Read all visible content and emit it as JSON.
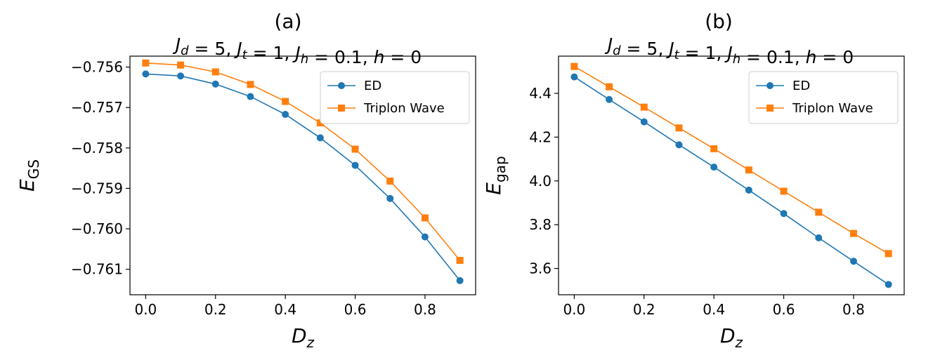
{
  "chart_data": [
    {
      "type": "line",
      "panel_label": "(a)",
      "title": {
        "parts": [
          {
            "text": "J",
            "italic": true
          },
          {
            "text": "d",
            "italic": true,
            "sub": true
          },
          {
            "text": " = 5, ",
            "italic": false
          },
          {
            "text": "J",
            "italic": true
          },
          {
            "text": "t",
            "italic": true,
            "sub": true
          },
          {
            "text": " = 1, ",
            "italic": false
          },
          {
            "text": "J",
            "italic": true
          },
          {
            "text": "h",
            "italic": true,
            "sub": true
          },
          {
            "text": " = 0.1, ",
            "italic": false
          },
          {
            "text": "h",
            "italic": true
          },
          {
            "text": " = 0",
            "italic": false
          }
        ]
      },
      "xlabel": {
        "main": "D",
        "sub": "z",
        "italic": true,
        "sub_italic": true
      },
      "ylabel": {
        "main": "E",
        "sub": "GS",
        "italic": true,
        "sub_italic": false
      },
      "xlim": [
        -0.045,
        0.945
      ],
      "ylim": [
        -0.76163,
        -0.75573
      ],
      "xticks": [
        0.0,
        0.2,
        0.4,
        0.6,
        0.8
      ],
      "xtick_labels": [
        "0.0",
        "0.2",
        "0.4",
        "0.6",
        "0.8"
      ],
      "yticks": [
        -0.756,
        -0.757,
        -0.758,
        -0.759,
        -0.76,
        -0.761
      ],
      "ytick_labels": [
        "−0.756",
        "−0.757",
        "−0.758",
        "−0.759",
        "−0.760",
        "−0.761"
      ],
      "grid": false,
      "legend_position": "top-right",
      "x": [
        0.0,
        0.1,
        0.2,
        0.3,
        0.4,
        0.5,
        0.6,
        0.7,
        0.8,
        0.9
      ],
      "series": [
        {
          "name": "ED",
          "color": "#1f77b4",
          "marker": "circle",
          "values": [
            -0.75617,
            -0.75622,
            -0.75642,
            -0.75673,
            -0.75717,
            -0.75775,
            -0.75843,
            -0.75925,
            -0.7602,
            -0.76128
          ]
        },
        {
          "name": "Triplon Wave",
          "color": "#ff7f0e",
          "marker": "square",
          "values": [
            -0.7559,
            -0.75595,
            -0.75612,
            -0.75643,
            -0.75685,
            -0.75738,
            -0.75803,
            -0.75882,
            -0.75973,
            -0.76078
          ]
        }
      ]
    },
    {
      "type": "line",
      "panel_label": "(b)",
      "title": {
        "parts": [
          {
            "text": "J",
            "italic": true
          },
          {
            "text": "d",
            "italic": true,
            "sub": true
          },
          {
            "text": " = 5, ",
            "italic": false
          },
          {
            "text": "J",
            "italic": true
          },
          {
            "text": "t",
            "italic": true,
            "sub": true
          },
          {
            "text": " = 1, ",
            "italic": false
          },
          {
            "text": "J",
            "italic": true
          },
          {
            "text": "h",
            "italic": true,
            "sub": true
          },
          {
            "text": " = 0.1, ",
            "italic": false
          },
          {
            "text": "h",
            "italic": true
          },
          {
            "text": " = 0",
            "italic": false
          }
        ]
      },
      "xlabel": {
        "main": "D",
        "sub": "z",
        "italic": true,
        "sub_italic": true
      },
      "ylabel": {
        "main": "E",
        "sub": "gap",
        "italic": true,
        "sub_italic": false
      },
      "xlim": [
        -0.045,
        0.945
      ],
      "ylim": [
        3.48,
        4.57
      ],
      "xticks": [
        0.0,
        0.2,
        0.4,
        0.6,
        0.8
      ],
      "xtick_labels": [
        "0.0",
        "0.2",
        "0.4",
        "0.6",
        "0.8"
      ],
      "yticks": [
        3.6,
        3.8,
        4.0,
        4.2,
        4.4
      ],
      "ytick_labels": [
        "3.6",
        "3.8",
        "4.0",
        "4.2",
        "4.4"
      ],
      "grid": false,
      "legend_position": "top-right",
      "x": [
        0.0,
        0.1,
        0.2,
        0.3,
        0.4,
        0.5,
        0.6,
        0.7,
        0.8,
        0.9
      ],
      "series": [
        {
          "name": "ED",
          "color": "#1f77b4",
          "marker": "circle",
          "values": [
            4.475,
            4.372,
            4.27,
            4.165,
            4.063,
            3.958,
            3.851,
            3.74,
            3.633,
            3.527
          ]
        },
        {
          "name": "Triplon Wave",
          "color": "#ff7f0e",
          "marker": "square",
          "values": [
            4.523,
            4.43,
            4.337,
            4.242,
            4.147,
            4.05,
            3.953,
            3.857,
            3.76,
            3.668
          ]
        }
      ]
    }
  ]
}
